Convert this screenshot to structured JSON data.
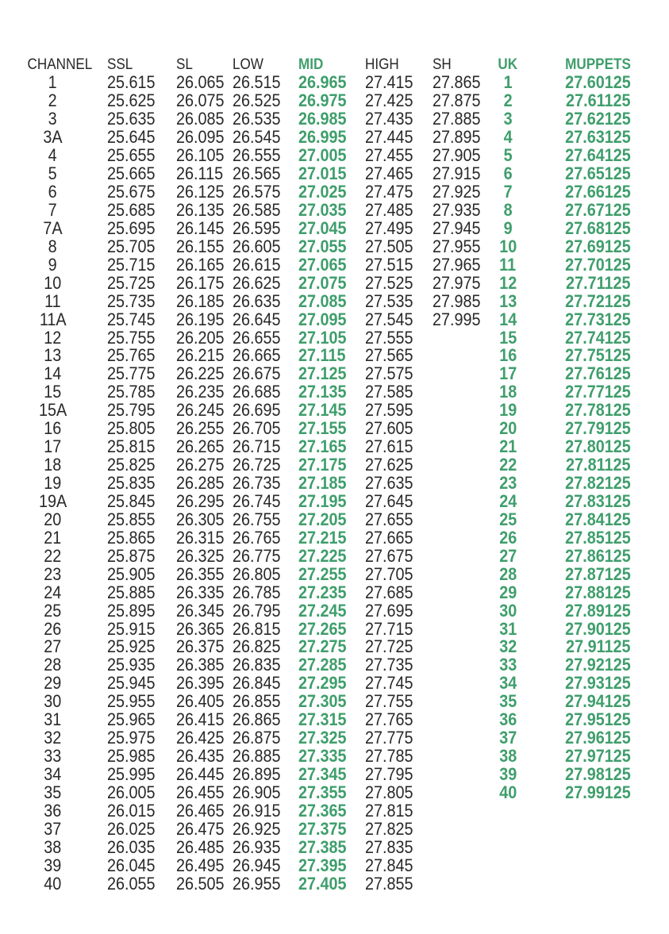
{
  "colors": {
    "text": "#282828",
    "accent_green": "#3f9e6c",
    "background": "#ffffff"
  },
  "table": {
    "columns": [
      {
        "key": "channel",
        "label": "CHANNEL",
        "accent": false
      },
      {
        "key": "ssl",
        "label": "SSL",
        "accent": false
      },
      {
        "key": "sl",
        "label": "SL",
        "accent": false
      },
      {
        "key": "low",
        "label": "LOW",
        "accent": false
      },
      {
        "key": "mid",
        "label": "MID",
        "accent": true
      },
      {
        "key": "high",
        "label": "HIGH",
        "accent": false
      },
      {
        "key": "sh",
        "label": "SH",
        "accent": false
      },
      {
        "key": "uk",
        "label": "UK",
        "accent": true
      },
      {
        "key": "muppets",
        "label": "MUPPETS",
        "accent": true
      }
    ],
    "rows": [
      [
        "1",
        "25.615",
        "26.065",
        "26.515",
        "26.965",
        "27.415",
        "27.865",
        "1",
        "27.60125"
      ],
      [
        "2",
        "25.625",
        "26.075",
        "26.525",
        "26.975",
        "27.425",
        "27.875",
        "2",
        "27.61125"
      ],
      [
        "3",
        "25.635",
        "26.085",
        "26.535",
        "26.985",
        "27.435",
        "27.885",
        "3",
        "27.62125"
      ],
      [
        "3A",
        "25.645",
        "26.095",
        "26.545",
        "26.995",
        "27.445",
        "27.895",
        "4",
        "27.63125"
      ],
      [
        "4",
        "25.655",
        "26.105",
        "26.555",
        "27.005",
        "27.455",
        "27.905",
        "5",
        "27.64125"
      ],
      [
        "5",
        "25.665",
        "26.115",
        "26.565",
        "27.015",
        "27.465",
        "27.915",
        "6",
        "27.65125"
      ],
      [
        "6",
        "25.675",
        "26.125",
        "26.575",
        "27.025",
        "27.475",
        "27.925",
        "7",
        "27.66125"
      ],
      [
        "7",
        "25.685",
        "26.135",
        "26.585",
        "27.035",
        "27.485",
        "27.935",
        "8",
        "27.67125"
      ],
      [
        "7A",
        "25.695",
        "26.145",
        "26.595",
        "27.045",
        "27.495",
        "27.945",
        "9",
        "27.68125"
      ],
      [
        "8",
        "25.705",
        "26.155",
        "26.605",
        "27.055",
        "27.505",
        "27.955",
        "10",
        "27.69125"
      ],
      [
        "9",
        "25.715",
        "26.165",
        "26.615",
        "27.065",
        "27.515",
        "27.965",
        "11",
        "27.70125"
      ],
      [
        "10",
        "25.725",
        "26.175",
        "26.625",
        "27.075",
        "27.525",
        "27.975",
        "12",
        "27.71125"
      ],
      [
        "11",
        "25.735",
        "26.185",
        "26.635",
        "27.085",
        "27.535",
        "27.985",
        "13",
        "27.72125"
      ],
      [
        "11A",
        "25.745",
        "26.195",
        "26.645",
        "27.095",
        "27.545",
        "27.995",
        "14",
        "27.73125"
      ],
      [
        "12",
        "25.755",
        "26.205",
        "26.655",
        "27.105",
        "27.555",
        "",
        "15",
        "27.74125"
      ],
      [
        "13",
        "25.765",
        "26.215",
        "26.665",
        "27.115",
        "27.565",
        "",
        "16",
        "27.75125"
      ],
      [
        "14",
        "25.775",
        "26.225",
        "26.675",
        "27.125",
        "27.575",
        "",
        "17",
        "27.76125"
      ],
      [
        "15",
        "25.785",
        "26.235",
        "26.685",
        "27.135",
        "27.585",
        "",
        "18",
        "27.77125"
      ],
      [
        "15A",
        "25.795",
        "26.245",
        "26.695",
        "27.145",
        "27.595",
        "",
        "19",
        "27.78125"
      ],
      [
        "16",
        "25.805",
        "26.255",
        "26.705",
        "27.155",
        "27.605",
        "",
        "20",
        "27.79125"
      ],
      [
        "17",
        "25.815",
        "26.265",
        "26.715",
        "27.165",
        "27.615",
        "",
        "21",
        "27.80125"
      ],
      [
        "18",
        "25.825",
        "26.275",
        "26.725",
        "27.175",
        "27.625",
        "",
        "22",
        "27.81125"
      ],
      [
        "19",
        "25.835",
        "26.285",
        "26.735",
        "27.185",
        "27.635",
        "",
        "23",
        "27.82125"
      ],
      [
        "19A",
        "25.845",
        "26.295",
        "26.745",
        "27.195",
        "27.645",
        "",
        "24",
        "27.83125"
      ],
      [
        "20",
        "25.855",
        "26.305",
        "26.755",
        "27.205",
        "27.655",
        "",
        "25",
        "27.84125"
      ],
      [
        "21",
        "25.865",
        "26.315",
        "26.765",
        "27.215",
        "27.665",
        "",
        "26",
        "27.85125"
      ],
      [
        "22",
        "25.875",
        "26.325",
        "26.775",
        "27.225",
        "27.675",
        "",
        "27",
        "27.86125"
      ],
      [
        "23",
        "25.905",
        "26.355",
        "26.805",
        "27.255",
        "27.705",
        "",
        "28",
        "27.87125"
      ],
      [
        "24",
        "25.885",
        "26.335",
        "26.785",
        "27.235",
        "27.685",
        "",
        "29",
        "27.88125"
      ],
      [
        "25",
        "25.895",
        "26.345",
        "26.795",
        "27.245",
        "27.695",
        "",
        "30",
        "27.89125"
      ],
      [
        "26",
        "25.915",
        "26.365",
        "26.815",
        "27.265",
        "27.715",
        "",
        "31",
        "27.90125"
      ],
      [
        "27",
        "25.925",
        "26.375",
        "26.825",
        "27.275",
        "27.725",
        "",
        "32",
        "27.91125"
      ],
      [
        "28",
        "25.935",
        "26.385",
        "26.835",
        "27.285",
        "27.735",
        "",
        "33",
        "27.92125"
      ],
      [
        "29",
        "25.945",
        "26.395",
        "26.845",
        "27.295",
        "27.745",
        "",
        "34",
        "27.93125"
      ],
      [
        "30",
        "25.955",
        "26.405",
        "26.855",
        "27.305",
        "27.755",
        "",
        "35",
        "27.94125"
      ],
      [
        "31",
        "25.965",
        "26.415",
        "26.865",
        "27.315",
        "27.765",
        "",
        "36",
        "27.95125"
      ],
      [
        "32",
        "25.975",
        "26.425",
        "26.875",
        "27.325",
        "27.775",
        "",
        "37",
        "27.96125"
      ],
      [
        "33",
        "25.985",
        "26.435",
        "26.885",
        "27.335",
        "27.785",
        "",
        "38",
        "27.97125"
      ],
      [
        "34",
        "25.995",
        "26.445",
        "26.895",
        "27.345",
        "27.795",
        "",
        "39",
        "27.98125"
      ],
      [
        "35",
        "26.005",
        "26.455",
        "26.905",
        "27.355",
        "27.805",
        "",
        "40",
        "27.99125"
      ],
      [
        "36",
        "26.015",
        "26.465",
        "26.915",
        "27.365",
        "27.815",
        "",
        "",
        ""
      ],
      [
        "37",
        "26.025",
        "26.475",
        "26.925",
        "27.375",
        "27.825",
        "",
        "",
        ""
      ],
      [
        "38",
        "26.035",
        "26.485",
        "26.935",
        "27.385",
        "27.835",
        "",
        "",
        ""
      ],
      [
        "39",
        "26.045",
        "26.495",
        "26.945",
        "27.395",
        "27.845",
        "",
        "",
        ""
      ],
      [
        "40",
        "26.055",
        "26.505",
        "26.955",
        "27.405",
        "27.855",
        "",
        "",
        ""
      ]
    ]
  }
}
